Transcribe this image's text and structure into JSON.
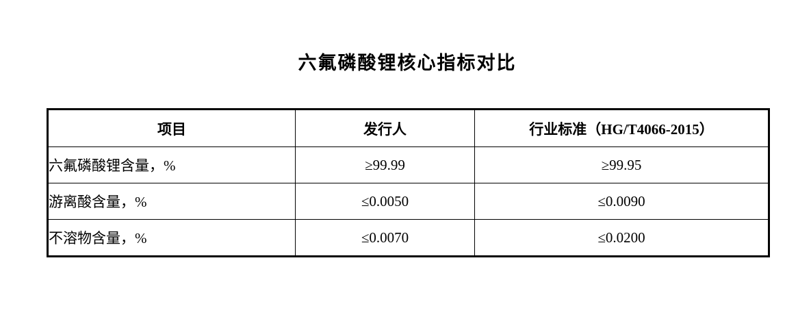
{
  "page": {
    "title": "六氟磷酸锂核心指标对比"
  },
  "table": {
    "columns": {
      "item": "项目",
      "issuer": "发行人",
      "standard": "行业标准（HG/T4066-2015）"
    },
    "rows": [
      {
        "item": "六氟磷酸锂含量，%",
        "issuer": "≥99.99",
        "standard": "≥99.95"
      },
      {
        "item": "游离酸含量，%",
        "issuer": "≤0.0050",
        "standard": "≤0.0090"
      },
      {
        "item": "不溶物含量，%",
        "issuer": "≤0.0070",
        "standard": "≤0.0200"
      }
    ]
  },
  "colors": {
    "text": "#000000",
    "border": "#000000",
    "background": "#ffffff"
  }
}
